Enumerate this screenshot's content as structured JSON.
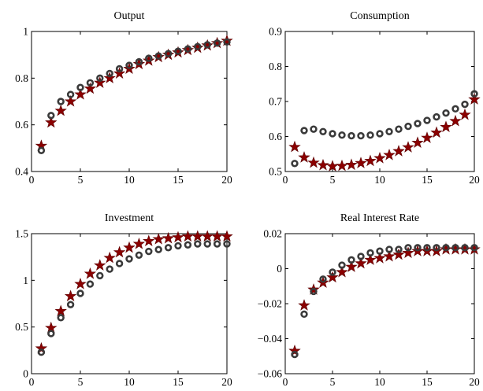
{
  "colors": {
    "circle_series": "#3a3a3a",
    "star_series": "#8b0000",
    "star_stroke": "#5a0000",
    "background": "#ffffff",
    "axes": "#000000"
  },
  "chart_data": [
    {
      "type": "scatter",
      "title": "Output",
      "xlabel": "",
      "ylabel": "",
      "xlim": [
        0,
        20
      ],
      "ylim": [
        0.4,
        1
      ],
      "xticks": [
        0,
        5,
        10,
        15,
        20
      ],
      "yticks": [
        0.4,
        0.6,
        0.8,
        1
      ],
      "xtick_labels": [
        "0",
        "5",
        "10",
        "15",
        "20"
      ],
      "ytick_labels": [
        "0.4",
        "0.6",
        "0.8",
        "1"
      ],
      "x": [
        1,
        2,
        3,
        4,
        5,
        6,
        7,
        8,
        9,
        10,
        11,
        12,
        13,
        14,
        15,
        16,
        17,
        18,
        19,
        20
      ],
      "series": [
        {
          "marker": "circle",
          "values": [
            0.49,
            0.64,
            0.7,
            0.73,
            0.76,
            0.78,
            0.8,
            0.82,
            0.84,
            0.855,
            0.87,
            0.885,
            0.895,
            0.905,
            0.915,
            0.925,
            0.935,
            0.943,
            0.95,
            0.955
          ]
        },
        {
          "marker": "star",
          "values": [
            0.51,
            0.61,
            0.66,
            0.7,
            0.73,
            0.755,
            0.78,
            0.8,
            0.82,
            0.84,
            0.86,
            0.875,
            0.89,
            0.9,
            0.91,
            0.92,
            0.93,
            0.94,
            0.95,
            0.96
          ]
        }
      ],
      "grid": false
    },
    {
      "type": "scatter",
      "title": "Consumption",
      "xlabel": "",
      "ylabel": "",
      "xlim": [
        0,
        20
      ],
      "ylim": [
        0.5,
        0.9
      ],
      "xticks": [
        0,
        5,
        10,
        15,
        20
      ],
      "yticks": [
        0.5,
        0.6,
        0.7,
        0.8,
        0.9
      ],
      "xtick_labels": [
        "0",
        "5",
        "10",
        "15",
        "20"
      ],
      "ytick_labels": [
        "0.5",
        "0.6",
        "0.7",
        "0.8",
        "0.9"
      ],
      "x": [
        1,
        2,
        3,
        4,
        5,
        6,
        7,
        8,
        9,
        10,
        11,
        12,
        13,
        14,
        15,
        16,
        17,
        18,
        19,
        20
      ],
      "series": [
        {
          "marker": "circle",
          "values": [
            0.523,
            0.617,
            0.621,
            0.614,
            0.608,
            0.604,
            0.602,
            0.602,
            0.604,
            0.608,
            0.614,
            0.621,
            0.629,
            0.637,
            0.646,
            0.656,
            0.667,
            0.679,
            0.692,
            0.722
          ]
        },
        {
          "marker": "star",
          "values": [
            0.57,
            0.54,
            0.525,
            0.518,
            0.515,
            0.516,
            0.519,
            0.524,
            0.53,
            0.538,
            0.547,
            0.558,
            0.569,
            0.582,
            0.596,
            0.611,
            0.627,
            0.644,
            0.662,
            0.706
          ]
        }
      ],
      "grid": false
    },
    {
      "type": "scatter",
      "title": "Investment",
      "xlabel": "",
      "ylabel": "",
      "xlim": [
        0,
        20
      ],
      "ylim": [
        0,
        1.5
      ],
      "xticks": [
        0,
        5,
        10,
        15,
        20
      ],
      "yticks": [
        0,
        0.5,
        1,
        1.5
      ],
      "xtick_labels": [
        "0",
        "5",
        "10",
        "15",
        "20"
      ],
      "ytick_labels": [
        "0",
        "0.5",
        "1",
        "1.5"
      ],
      "x": [
        1,
        2,
        3,
        4,
        5,
        6,
        7,
        8,
        9,
        10,
        11,
        12,
        13,
        14,
        15,
        16,
        17,
        18,
        19,
        20
      ],
      "series": [
        {
          "marker": "circle",
          "values": [
            0.23,
            0.43,
            0.6,
            0.74,
            0.86,
            0.96,
            1.05,
            1.12,
            1.18,
            1.23,
            1.27,
            1.31,
            1.33,
            1.35,
            1.37,
            1.38,
            1.39,
            1.39,
            1.39,
            1.39
          ]
        },
        {
          "marker": "star",
          "values": [
            0.27,
            0.49,
            0.67,
            0.83,
            0.96,
            1.07,
            1.16,
            1.24,
            1.3,
            1.35,
            1.39,
            1.42,
            1.44,
            1.45,
            1.46,
            1.47,
            1.47,
            1.47,
            1.47,
            1.47
          ]
        }
      ],
      "grid": false
    },
    {
      "type": "scatter",
      "title": "Real Interest Rate",
      "xlabel": "",
      "ylabel": "",
      "xlim": [
        0,
        20
      ],
      "ylim": [
        -0.06,
        0.02
      ],
      "xticks": [
        0,
        5,
        10,
        15,
        20
      ],
      "yticks": [
        -0.06,
        -0.04,
        -0.02,
        0,
        0.02
      ],
      "xtick_labels": [
        "0",
        "5",
        "10",
        "15",
        "20"
      ],
      "ytick_labels": [
        "−0.06",
        "−0.04",
        "−0.02",
        "0",
        "0.02"
      ],
      "x": [
        1,
        2,
        3,
        4,
        5,
        6,
        7,
        8,
        9,
        10,
        11,
        12,
        13,
        14,
        15,
        16,
        17,
        18,
        19,
        20
      ],
      "series": [
        {
          "marker": "circle",
          "values": [
            -0.049,
            -0.026,
            -0.013,
            -0.006,
            -0.002,
            0.002,
            0.005,
            0.007,
            0.009,
            0.01,
            0.011,
            0.011,
            0.012,
            0.012,
            0.012,
            0.012,
            0.012,
            0.012,
            0.012,
            0.012
          ]
        },
        {
          "marker": "star",
          "values": [
            -0.047,
            -0.021,
            -0.012,
            -0.008,
            -0.005,
            -0.002,
            0.001,
            0.003,
            0.005,
            0.006,
            0.007,
            0.008,
            0.009,
            0.01,
            0.01,
            0.01,
            0.011,
            0.011,
            0.011,
            0.011
          ]
        }
      ],
      "grid": false
    }
  ]
}
